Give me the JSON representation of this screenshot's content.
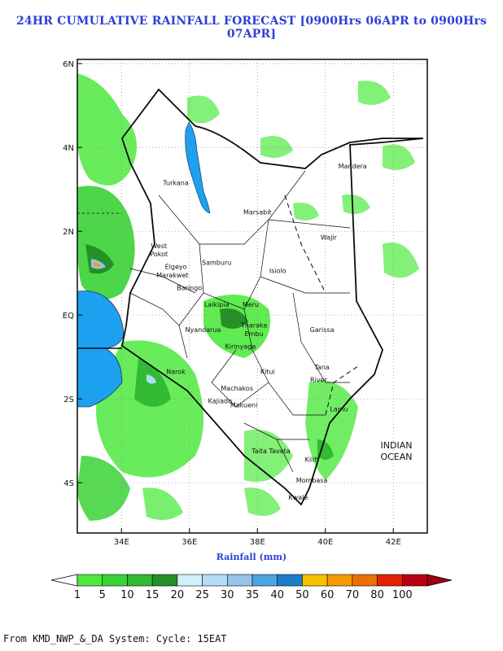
{
  "title": "24HR CUMULATIVE RAINFALL FORECAST [0900Hrs 06APR to 0900Hrs 07APR]",
  "xlabel": "Rainfall (mm)",
  "footer": "From KMD_NWP_&_DA System: Cycle: 15EAT",
  "map": {
    "lon_range": [
      32.7,
      43.0
    ],
    "lat_range": [
      -5.2,
      6.1
    ],
    "lon_ticks": [
      {
        "v": 34,
        "label": "34E"
      },
      {
        "v": 36,
        "label": "36E"
      },
      {
        "v": 38,
        "label": "38E"
      },
      {
        "v": 40,
        "label": "40E"
      },
      {
        "v": 42,
        "label": "42E"
      }
    ],
    "lat_ticks": [
      {
        "v": 6,
        "label": "6N"
      },
      {
        "v": 4,
        "label": "4N"
      },
      {
        "v": 2,
        "label": "2N"
      },
      {
        "v": 0,
        "label": "EQ"
      },
      {
        "v": -2,
        "label": "2S"
      },
      {
        "v": -4,
        "label": "4S"
      }
    ],
    "ocean_label": [
      "INDIAN",
      "OCEAN"
    ],
    "places": [
      {
        "name": "Turkana",
        "lon": 35.6,
        "lat": 3.1
      },
      {
        "name": "Mandera",
        "lon": 40.8,
        "lat": 3.5
      },
      {
        "name": "Marsabit",
        "lon": 38.0,
        "lat": 2.4
      },
      {
        "name": "Wajir",
        "lon": 40.1,
        "lat": 1.8
      },
      {
        "name": "West",
        "lon": 35.1,
        "lat": 1.6
      },
      {
        "name": "Pokot",
        "lon": 35.1,
        "lat": 1.4
      },
      {
        "name": "Samburu",
        "lon": 36.8,
        "lat": 1.2
      },
      {
        "name": "Isiolo",
        "lon": 38.6,
        "lat": 1.0
      },
      {
        "name": "Elgeyo",
        "lon": 35.6,
        "lat": 1.1
      },
      {
        "name": "Marakwet",
        "lon": 35.5,
        "lat": 0.9
      },
      {
        "name": "Baringo",
        "lon": 36.0,
        "lat": 0.6
      },
      {
        "name": "Laikipia",
        "lon": 36.8,
        "lat": 0.2
      },
      {
        "name": "Meru",
        "lon": 37.8,
        "lat": 0.2
      },
      {
        "name": "Garissa",
        "lon": 39.9,
        "lat": -0.4
      },
      {
        "name": "Tharaka",
        "lon": 37.9,
        "lat": -0.3
      },
      {
        "name": "Embu",
        "lon": 37.9,
        "lat": -0.5
      },
      {
        "name": "Kirinyaga",
        "lon": 37.5,
        "lat": -0.8
      },
      {
        "name": "Nyandarua",
        "lon": 36.4,
        "lat": -0.4
      },
      {
        "name": "Kitui",
        "lon": 38.3,
        "lat": -1.4
      },
      {
        "name": "Tana",
        "lon": 39.9,
        "lat": -1.3
      },
      {
        "name": "River",
        "lon": 39.8,
        "lat": -1.6
      },
      {
        "name": "Narok",
        "lon": 35.6,
        "lat": -1.4
      },
      {
        "name": "Makueni",
        "lon": 37.6,
        "lat": -2.2
      },
      {
        "name": "Machakos",
        "lon": 37.4,
        "lat": -1.8
      },
      {
        "name": "Kajiado",
        "lon": 36.9,
        "lat": -2.1
      },
      {
        "name": "Lamu",
        "lon": 40.4,
        "lat": -2.3
      },
      {
        "name": "Taita Taveta",
        "lon": 38.4,
        "lat": -3.3
      },
      {
        "name": "Kilifi",
        "lon": 39.6,
        "lat": -3.5
      },
      {
        "name": "Mombasa",
        "lon": 39.6,
        "lat": -4.0
      },
      {
        "name": "Kwale",
        "lon": 39.2,
        "lat": -4.4
      }
    ]
  },
  "colorbar": {
    "labels": [
      "1",
      "5",
      "10",
      "15",
      "20",
      "25",
      "30",
      "35",
      "40",
      "50",
      "60",
      "70",
      "80",
      "100"
    ],
    "colors": [
      "#4ee93e",
      "#3ad236",
      "#32bb32",
      "#268f26",
      "#d2f0fc",
      "#b4dcf8",
      "#96c3ea",
      "#4aa6e0",
      "#1d7ec8",
      "#f7c200",
      "#f49b00",
      "#ea7000",
      "#e22200",
      "#b80010"
    ]
  }
}
